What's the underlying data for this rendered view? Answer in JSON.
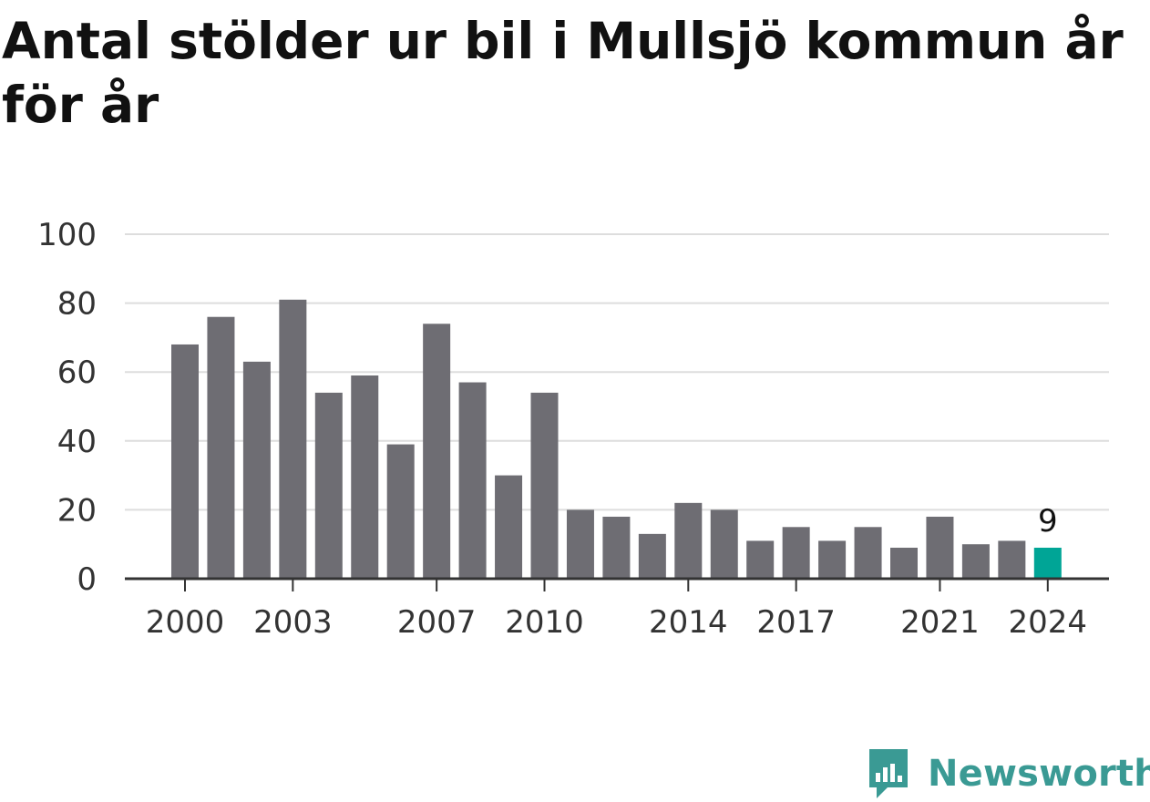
{
  "title": "Antal stölder ur bil i Mullsjö kommun år för år",
  "brand": {
    "name": "Newsworthy",
    "icon": "newsworthy-chat-bars-icon",
    "color": "#3a9a94"
  },
  "colors": {
    "bar": "#6e6d73",
    "highlight": "#00a596",
    "grid": "#dddddd",
    "axis": "#333333"
  },
  "chart_data": {
    "type": "bar",
    "title": "Antal stölder ur bil i Mullsjö kommun år för år",
    "xlabel": "",
    "ylabel": "",
    "categories": [
      "2000",
      "2001",
      "2002",
      "2003",
      "2004",
      "2005",
      "2006",
      "2007",
      "2008",
      "2009",
      "2010",
      "2011",
      "2012",
      "2013",
      "2014",
      "2015",
      "2016",
      "2017",
      "2018",
      "2019",
      "2020",
      "2021",
      "2022",
      "2023",
      "2024"
    ],
    "values": [
      68,
      76,
      63,
      81,
      54,
      59,
      39,
      74,
      57,
      30,
      54,
      20,
      18,
      13,
      22,
      20,
      11,
      15,
      11,
      15,
      9,
      18,
      10,
      11,
      9
    ],
    "ylim": [
      0,
      100
    ],
    "yticks": [
      0,
      20,
      40,
      60,
      80,
      100
    ],
    "xtick_labels": [
      "2000",
      "2003",
      "2007",
      "2010",
      "2014",
      "2017",
      "2021",
      "2024"
    ],
    "highlight": {
      "category": "2024",
      "value_label": "9"
    },
    "grid": true,
    "legend": "none"
  }
}
